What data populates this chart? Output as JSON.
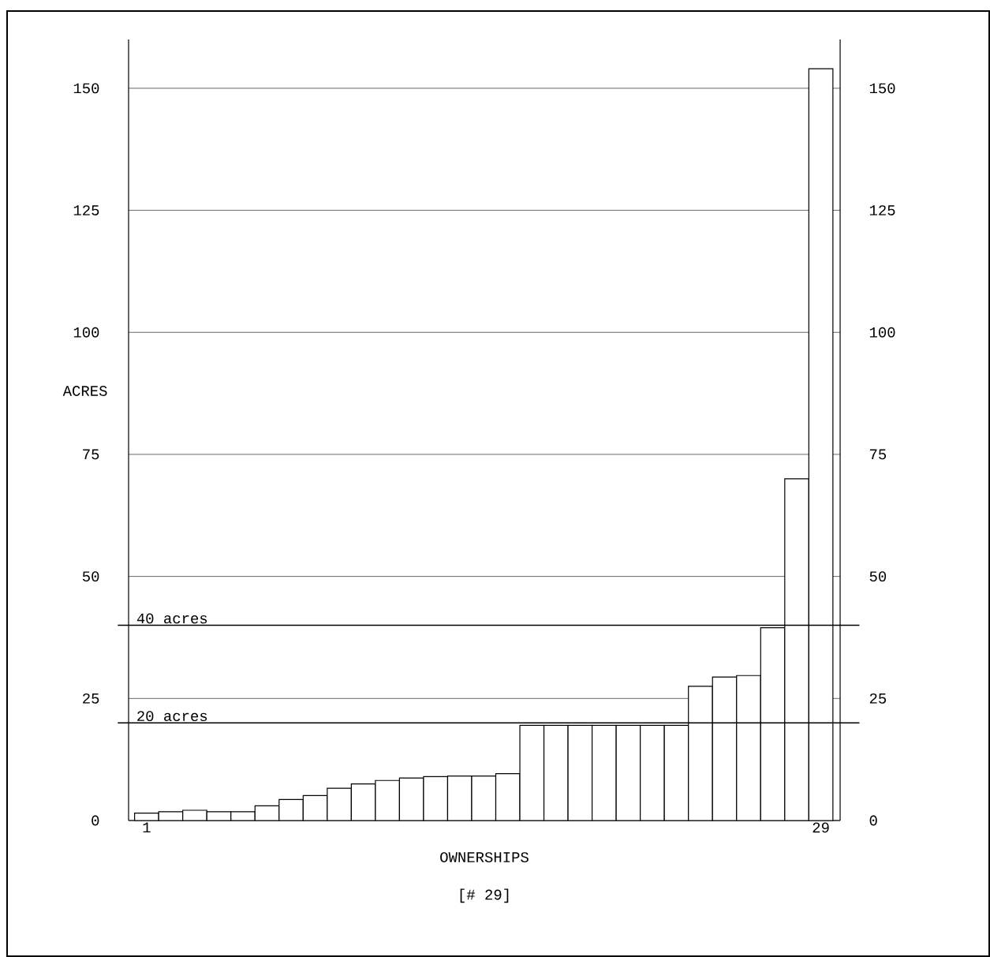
{
  "chart_data": {
    "type": "bar",
    "xlabel": "OWNERSHIPS",
    "ylabel": "ACRES",
    "annotations": [
      "[# 29]"
    ],
    "categories": [
      "1",
      null,
      null,
      null,
      null,
      null,
      null,
      null,
      null,
      null,
      null,
      null,
      null,
      null,
      null,
      null,
      null,
      null,
      null,
      null,
      null,
      null,
      null,
      null,
      null,
      null,
      null,
      null,
      "29"
    ],
    "values": [
      1.5,
      1.8,
      2.1,
      1.8,
      1.8,
      3,
      4.3,
      5.1,
      6.6,
      7.5,
      8.2,
      8.7,
      9,
      9.1,
      9.1,
      9.6,
      19.5,
      19.5,
      19.5,
      19.5,
      19.5,
      19.5,
      19.5,
      27.5,
      29.4,
      29.7,
      39.5,
      70,
      154
    ],
    "color": "#ffffff",
    "ylim": [
      0,
      160
    ],
    "yticks": [
      0,
      25,
      50,
      75,
      100,
      125,
      150
    ],
    "y2lim": [
      0,
      160
    ],
    "y2ticks": [
      0,
      25,
      50,
      75,
      100,
      125,
      150
    ],
    "grid": "y",
    "ref_lines": [
      {
        "axis": "y",
        "value": 20,
        "label": "20 acres"
      },
      {
        "axis": "y",
        "value": 40,
        "label": "40 acres"
      }
    ]
  }
}
